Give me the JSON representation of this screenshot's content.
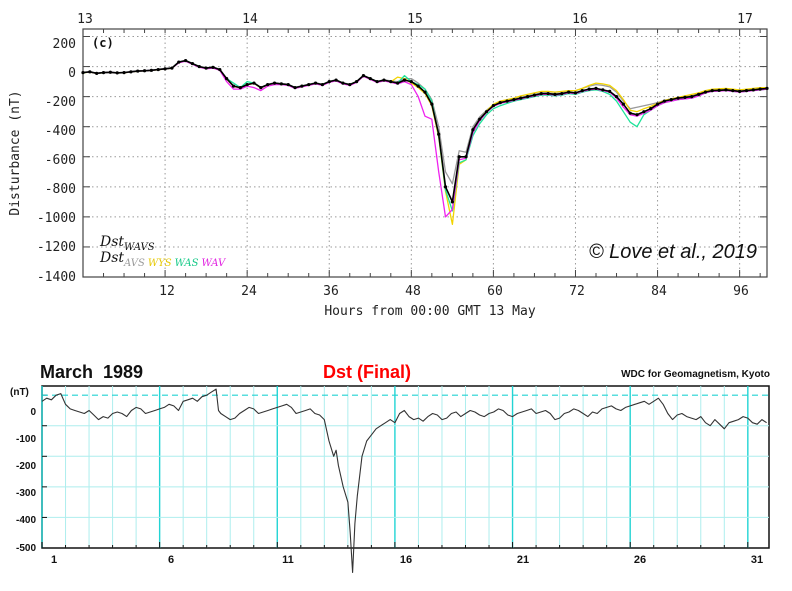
{
  "chart_data": [
    {
      "type": "line",
      "panel_label": "(c)",
      "top_axis_ticks": [
        "13",
        "14",
        "15",
        "16",
        "17"
      ],
      "xlabel": "Hours from 00:00 GMT 13 May",
      "ylabel": "Disturbance (nT)",
      "xlim": [
        0,
        100
      ],
      "ylim": [
        -1400,
        250
      ],
      "x_ticks": [
        "12",
        "24",
        "36",
        "48",
        "60",
        "72",
        "84",
        "96"
      ],
      "y_ticks": [
        "200",
        "0",
        "-200",
        "-400",
        "-600",
        "-800",
        "-1000",
        "-1200",
        "-1400"
      ],
      "grid": true,
      "legend": {
        "line1_main": "Dst",
        "line1_sub": "WAVS",
        "line2_main": "Dst",
        "line2_subs": [
          "AVS",
          "WYS",
          "WAS",
          "WAV"
        ]
      },
      "annotation": "© Love et al., 2019",
      "x": [
        0,
        1,
        2,
        3,
        4,
        5,
        6,
        7,
        8,
        9,
        10,
        11,
        12,
        13,
        14,
        15,
        16,
        17,
        18,
        19,
        20,
        21,
        22,
        23,
        24,
        25,
        26,
        27,
        28,
        29,
        30,
        31,
        32,
        33,
        34,
        35,
        36,
        37,
        38,
        39,
        40,
        41,
        42,
        43,
        44,
        45,
        46,
        47,
        48,
        49,
        50,
        51,
        52,
        53,
        54,
        55,
        56,
        57,
        58,
        59,
        60,
        61,
        62,
        63,
        64,
        65,
        66,
        67,
        68,
        69,
        70,
        71,
        72,
        73,
        74,
        75,
        76,
        77,
        78,
        79,
        80,
        81,
        82,
        83,
        84,
        85,
        86,
        87,
        88,
        89,
        90,
        91,
        92,
        93,
        94,
        95,
        96,
        97,
        98,
        99,
        100
      ],
      "series": [
        {
          "name": "WAVS",
          "color": "#000000",
          "values": [
            -40,
            -35,
            -45,
            -40,
            -38,
            -42,
            -40,
            -35,
            -30,
            -28,
            -25,
            -20,
            -15,
            -10,
            30,
            40,
            20,
            0,
            -10,
            -5,
            -20,
            -80,
            -130,
            -140,
            -120,
            -110,
            -140,
            -120,
            -110,
            -115,
            -120,
            -140,
            -130,
            -120,
            -110,
            -120,
            -100,
            -90,
            -110,
            -120,
            -100,
            -60,
            -80,
            -100,
            -90,
            -100,
            -110,
            -90,
            -100,
            -130,
            -170,
            -250,
            -450,
            -800,
            -900,
            -600,
            -600,
            -420,
            -350,
            -300,
            -260,
            -240,
            -230,
            -220,
            -210,
            -200,
            -190,
            -180,
            -180,
            -185,
            -180,
            -170,
            -175,
            -160,
            -150,
            -145,
            -155,
            -165,
            -200,
            -250,
            -310,
            -320,
            -300,
            -280,
            -250,
            -230,
            -220,
            -210,
            -205,
            -200,
            -185,
            -170,
            -160,
            -158,
            -155,
            -160,
            -165,
            -160,
            -155,
            -150,
            -145
          ]
        },
        {
          "name": "AVS",
          "color": "#9a9a9a",
          "values": [
            -38,
            -36,
            -44,
            -40,
            -37,
            -41,
            -39,
            -33,
            -28,
            -27,
            -24,
            -18,
            -13,
            -8,
            32,
            42,
            22,
            2,
            -8,
            -3,
            -18,
            -78,
            -128,
            -138,
            -118,
            -108,
            -138,
            -118,
            -108,
            -113,
            -118,
            -138,
            -128,
            -118,
            -108,
            -118,
            -98,
            -88,
            -108,
            -118,
            -98,
            -58,
            -78,
            -98,
            -88,
            -95,
            -100,
            -80,
            -80,
            -110,
            -150,
            -220,
            -400,
            -700,
            -780,
            -560,
            -570,
            -400,
            -335,
            -290,
            -255,
            -235,
            -225,
            -215,
            -205,
            -195,
            -185,
            -175,
            -175,
            -180,
            -175,
            -160,
            -160,
            -145,
            -130,
            -120,
            -125,
            -135,
            -170,
            -230,
            -280,
            -270,
            -260,
            -250,
            -240,
            -225,
            -215,
            -205,
            -200,
            -195,
            -180,
            -165,
            -155,
            -153,
            -150,
            -155,
            -160,
            -155,
            -150,
            -145,
            -140
          ]
        },
        {
          "name": "WYS",
          "color": "#f2d400",
          "values": [
            -42,
            -37,
            -46,
            -41,
            -39,
            -43,
            -41,
            -36,
            -31,
            -29,
            -26,
            -21,
            -16,
            -11,
            28,
            38,
            18,
            -2,
            -12,
            -7,
            -22,
            -82,
            -132,
            -142,
            -122,
            -112,
            -142,
            -122,
            -112,
            -117,
            -122,
            -142,
            -132,
            -122,
            -112,
            -122,
            -102,
            -92,
            -112,
            -122,
            -102,
            -62,
            -82,
            -102,
            -92,
            -102,
            -70,
            -80,
            -110,
            -140,
            -180,
            -260,
            -470,
            -830,
            -1050,
            -650,
            -620,
            -430,
            -355,
            -295,
            -250,
            -230,
            -220,
            -210,
            -195,
            -185,
            -175,
            -165,
            -165,
            -170,
            -165,
            -160,
            -160,
            -145,
            -125,
            -110,
            -115,
            -125,
            -160,
            -220,
            -290,
            -300,
            -280,
            -265,
            -245,
            -225,
            -215,
            -205,
            -195,
            -185,
            -175,
            -160,
            -150,
            -148,
            -145,
            -150,
            -155,
            -150,
            -145,
            -140,
            -140
          ]
        },
        {
          "name": "WAS",
          "color": "#1ee39a",
          "values": [
            -41,
            -36,
            -45,
            -41,
            -38,
            -42,
            -40,
            -35,
            -30,
            -28,
            -25,
            -20,
            -15,
            -10,
            30,
            40,
            20,
            0,
            -10,
            -5,
            -20,
            -80,
            -110,
            -140,
            -100,
            -110,
            -140,
            -120,
            -110,
            -115,
            -120,
            -140,
            -130,
            -120,
            -110,
            -120,
            -100,
            -90,
            -110,
            -120,
            -100,
            -60,
            -80,
            -100,
            -90,
            -100,
            -110,
            -60,
            -100,
            -120,
            -150,
            -230,
            -460,
            -820,
            -960,
            -640,
            -620,
            -460,
            -380,
            -320,
            -280,
            -260,
            -245,
            -230,
            -220,
            -210,
            -200,
            -190,
            -190,
            -195,
            -190,
            -180,
            -185,
            -170,
            -160,
            -155,
            -165,
            -185,
            -230,
            -300,
            -370,
            -400,
            -320,
            -290,
            -260,
            -240,
            -230,
            -220,
            -215,
            -210,
            -195,
            -175,
            -165,
            -163,
            -160,
            -165,
            -170,
            -165,
            -160,
            -155,
            -150
          ]
        },
        {
          "name": "WAV",
          "color": "#ee22ee",
          "values": [
            -39,
            -36,
            -45,
            -40,
            -38,
            -42,
            -40,
            -35,
            -30,
            -28,
            -25,
            -20,
            -15,
            -10,
            25,
            35,
            15,
            -5,
            -15,
            -10,
            -25,
            -100,
            -150,
            -150,
            -130,
            -140,
            -160,
            -130,
            -120,
            -120,
            -125,
            -145,
            -135,
            -125,
            -115,
            -125,
            -105,
            -95,
            -115,
            -125,
            -105,
            -65,
            -85,
            -105,
            -95,
            -105,
            -115,
            -100,
            -120,
            -200,
            -330,
            -350,
            -700,
            -1000,
            -950,
            -620,
            -610,
            -440,
            -360,
            -305,
            -265,
            -245,
            -235,
            -225,
            -215,
            -205,
            -195,
            -185,
            -185,
            -190,
            -185,
            -175,
            -180,
            -165,
            -155,
            -150,
            -160,
            -170,
            -210,
            -270,
            -320,
            -330,
            -310,
            -290,
            -260,
            -240,
            -230,
            -220,
            -215,
            -210,
            -195,
            -175,
            -165,
            -163,
            -160,
            -165,
            -170,
            -165,
            -160,
            -155,
            -150
          ]
        }
      ]
    },
    {
      "type": "line",
      "title_left": "March  1989",
      "title_center": "Dst (Final)",
      "title_right": "WDC for Geomagnetism, Kyoto",
      "ylabel": "(nT)",
      "xlim": [
        1,
        31.9
      ],
      "ylim": [
        -500,
        30
      ],
      "x_ticks": [
        "1",
        "6",
        "11",
        "16",
        "21",
        "26",
        "31"
      ],
      "y_ticks": [
        "0",
        "-100",
        "-200",
        "-300",
        "-400",
        "-500"
      ],
      "grid": true,
      "zero_line": true,
      "x": [
        1.0,
        1.2,
        1.4,
        1.6,
        1.8,
        2.0,
        2.2,
        2.4,
        2.6,
        2.8,
        3.0,
        3.2,
        3.4,
        3.6,
        3.8,
        4.0,
        4.2,
        4.4,
        4.6,
        4.8,
        5.0,
        5.2,
        5.4,
        5.6,
        5.8,
        6.0,
        6.2,
        6.4,
        6.6,
        6.8,
        7.0,
        7.2,
        7.4,
        7.6,
        7.8,
        8.0,
        8.2,
        8.4,
        8.5,
        8.6,
        8.8,
        9.0,
        9.2,
        9.4,
        9.6,
        9.8,
        10.0,
        10.2,
        10.4,
        10.6,
        10.8,
        11.0,
        11.2,
        11.4,
        11.6,
        11.8,
        12.0,
        12.2,
        12.4,
        12.6,
        12.8,
        13.0,
        13.2,
        13.4,
        13.5,
        13.6,
        13.8,
        14.0,
        14.1,
        14.2,
        14.3,
        14.4,
        14.6,
        14.8,
        15.0,
        15.2,
        15.4,
        15.6,
        15.8,
        16.0,
        16.2,
        16.4,
        16.6,
        16.8,
        17.0,
        17.2,
        17.4,
        17.6,
        17.8,
        18.0,
        18.2,
        18.4,
        18.6,
        18.8,
        19.0,
        19.2,
        19.4,
        19.6,
        19.8,
        20.0,
        20.2,
        20.4,
        20.6,
        20.8,
        21.0,
        21.2,
        21.4,
        21.6,
        21.8,
        22.0,
        22.2,
        22.4,
        22.6,
        22.8,
        23.0,
        23.2,
        23.4,
        23.6,
        23.8,
        24.0,
        24.2,
        24.4,
        24.6,
        24.8,
        25.0,
        25.2,
        25.4,
        25.6,
        25.8,
        26.0,
        26.2,
        26.4,
        26.6,
        26.8,
        27.0,
        27.2,
        27.4,
        27.6,
        27.8,
        28.0,
        28.2,
        28.4,
        28.6,
        28.8,
        29.0,
        29.2,
        29.4,
        29.6,
        29.8,
        30.0,
        30.2,
        30.4,
        30.6,
        30.8,
        31.0,
        31.2,
        31.4,
        31.6,
        31.8
      ],
      "series": [
        {
          "name": "Dst",
          "color": "#333333",
          "values": [
            -20,
            -10,
            -15,
            0,
            5,
            -30,
            -45,
            -50,
            -55,
            -60,
            -50,
            -65,
            -80,
            -70,
            -75,
            -60,
            -55,
            -60,
            -70,
            -50,
            -40,
            -45,
            -60,
            -55,
            -50,
            -45,
            -40,
            -30,
            -35,
            -50,
            -20,
            -15,
            -10,
            -20,
            -5,
            0,
            10,
            20,
            -50,
            -60,
            -70,
            -80,
            -75,
            -60,
            -50,
            -40,
            -45,
            -60,
            -55,
            -50,
            -45,
            -40,
            -35,
            -30,
            -40,
            -60,
            -55,
            -50,
            -45,
            -60,
            -65,
            -80,
            -150,
            -200,
            -180,
            -230,
            -300,
            -350,
            -450,
            -580,
            -420,
            -330,
            -200,
            -150,
            -130,
            -110,
            -100,
            -90,
            -80,
            -90,
            -60,
            -50,
            -70,
            -80,
            -75,
            -85,
            -70,
            -60,
            -65,
            -80,
            -75,
            -60,
            -55,
            -70,
            -60,
            -50,
            -55,
            -65,
            -70,
            -60,
            -55,
            -45,
            -50,
            -65,
            -70,
            -60,
            -55,
            -50,
            -45,
            -60,
            -55,
            -50,
            -60,
            -80,
            -75,
            -60,
            -55,
            -45,
            -50,
            -60,
            -70,
            -55,
            -60,
            -45,
            -40,
            -35,
            -45,
            -50,
            -40,
            -35,
            -30,
            -25,
            -20,
            -30,
            -20,
            -10,
            -30,
            -60,
            -80,
            -65,
            -60,
            -70,
            -75,
            -80,
            -70,
            -90,
            -100,
            -80,
            -95,
            -110,
            -90,
            -85,
            -80,
            -70,
            -75,
            -90,
            -95,
            -80,
            -90
          ]
        }
      ]
    }
  ]
}
